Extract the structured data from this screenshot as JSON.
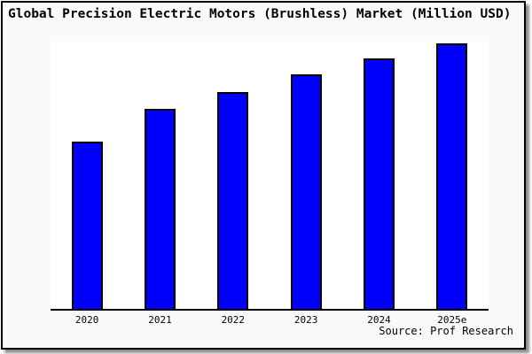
{
  "title": "Global Precision Electric Motors (Brushless) Market (Million USD)",
  "source": "Source: Prof Research",
  "colors": {
    "bar_fill": "#0000FB",
    "bar_border": "#000000",
    "frame_border": "#000000",
    "frame_background": "#FAFAF8",
    "plot_background": "#FFFFFF",
    "axis": "#000000",
    "text": "#000000"
  },
  "chart_data": {
    "type": "bar",
    "title": "Global Precision Electric Motors (Brushless) Market (Million USD)",
    "categories": [
      "2020",
      "2021",
      "2022",
      "2023",
      "2024",
      "2025e"
    ],
    "values": [
      63,
      75.3,
      81.7,
      88.2,
      94.3,
      100
    ],
    "values_note": "No numeric y-axis shown in chart; values are relative bar heights as % of tallest (2025e) bar",
    "xlabel": "",
    "ylabel": "",
    "y_axis_visible": false,
    "gridlines": false,
    "legend": false,
    "bar_color": "#0000FB",
    "source_note": "Source: Prof Research"
  }
}
